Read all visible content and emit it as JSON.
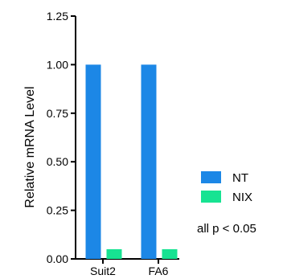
{
  "chart_data": {
    "type": "bar",
    "title": "",
    "xlabel": "",
    "ylabel": "Relative mRNA Level",
    "categories": [
      "Suit2",
      "FA6"
    ],
    "series": [
      {
        "name": "NT",
        "color": "#1c87e6",
        "values": [
          1.0,
          1.0
        ]
      },
      {
        "name": "NIX",
        "color": "#17e392",
        "values": [
          0.05,
          0.05
        ]
      }
    ],
    "ylim": [
      0,
      1.25
    ],
    "yticks": [
      0,
      0.25,
      0.5,
      0.75,
      1.0,
      1.25
    ],
    "ytick_labels": [
      "0.00",
      "0.25",
      "0.50",
      "0.75",
      "1.00",
      "1.25"
    ],
    "legend_position": "right",
    "annotation": "all p < 0.05",
    "grid": false
  }
}
